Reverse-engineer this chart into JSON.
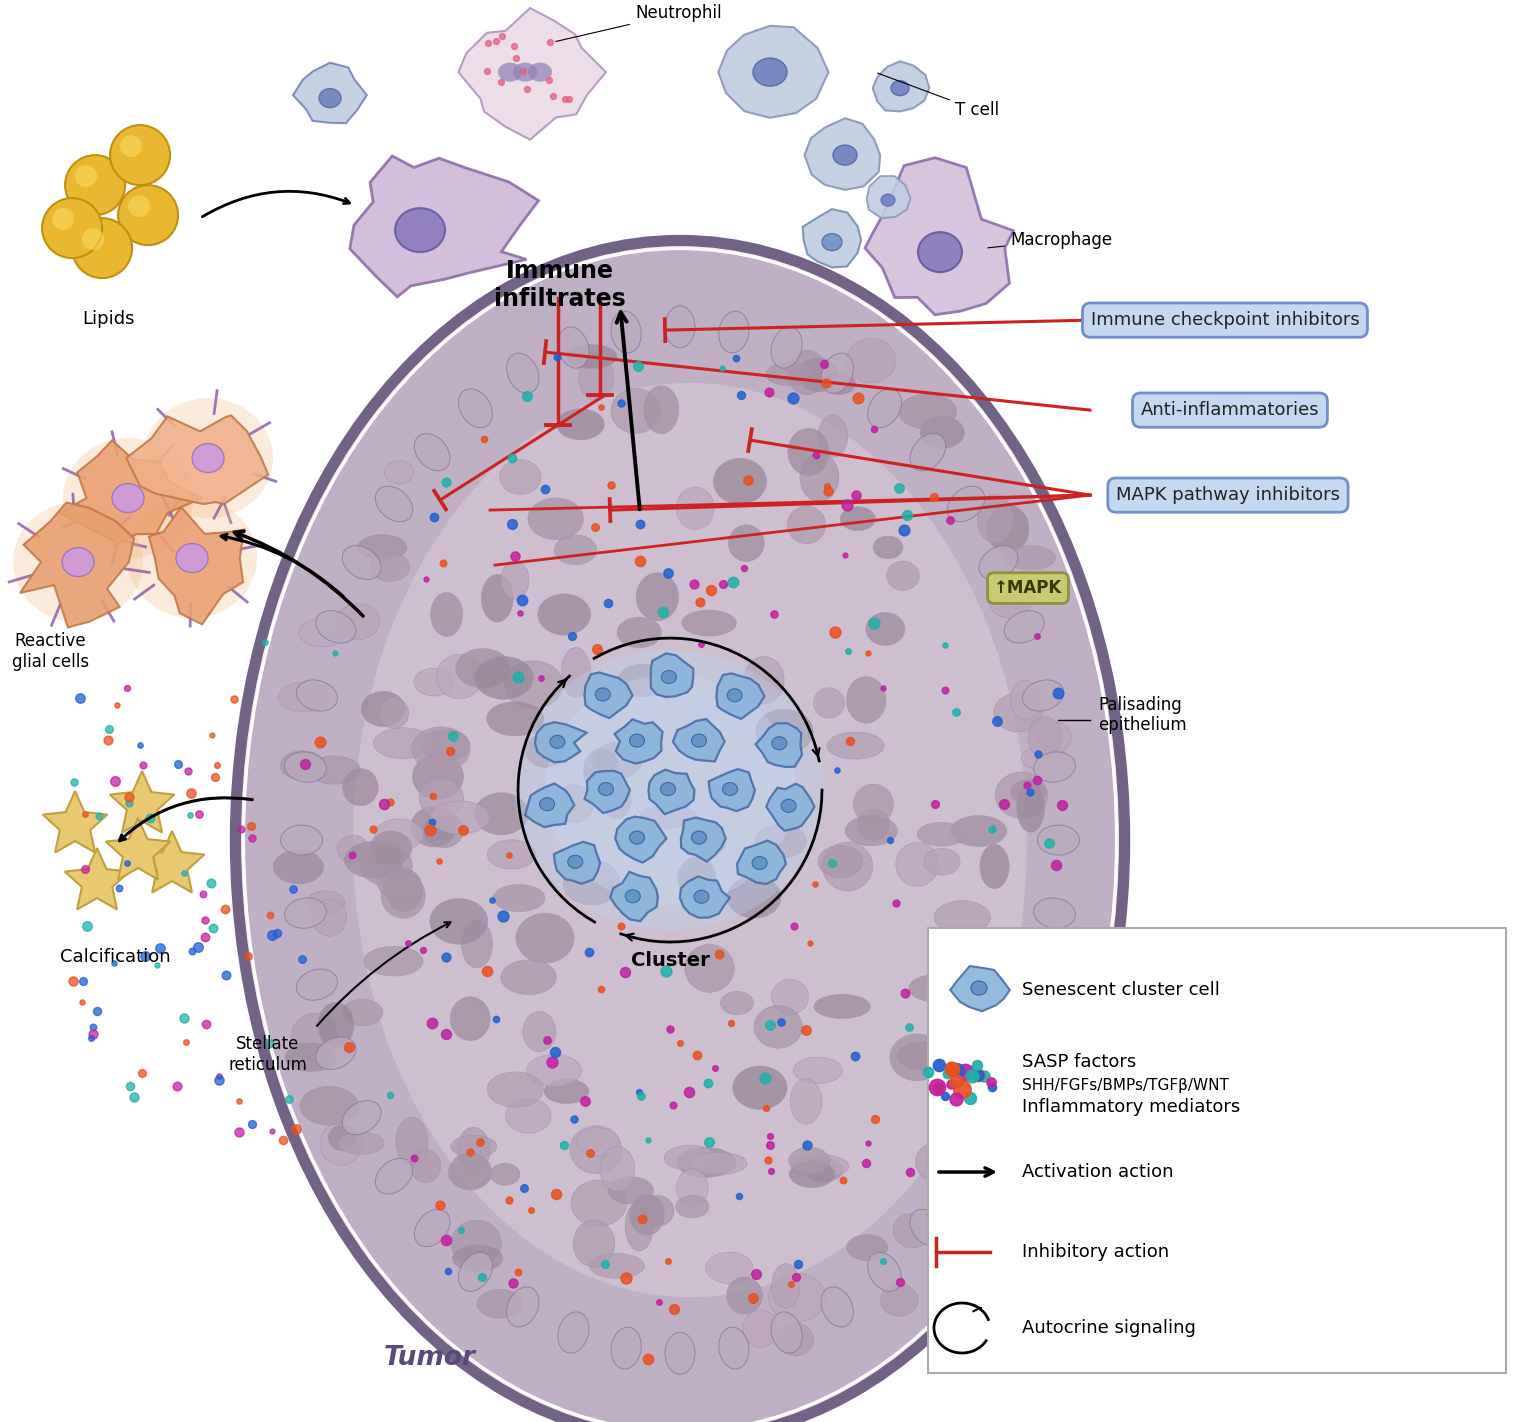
{
  "background_color": "#ffffff",
  "tumor_fill": "#c0b0c5",
  "tumor_edge": "#6a5a80",
  "tumor_inner": "#cfc0cf",
  "cell_mosaic_color": "#c8b8cc",
  "cell_mosaic_edge": "#a898b0",
  "palisade_color": "#b8a8c0",
  "palisade_edge": "#8878a0",
  "cluster_fill": "#8db5dc",
  "cluster_edge": "#4a6fa0",
  "cluster_nuc": "#6090c0",
  "cluster_glow": "#b0d0f0",
  "immune_large_fill": "#d0bcd8",
  "immune_large_edge": "#9070a8",
  "immune_large_nuc": "#8070b0",
  "immune_small_fill": "#c0cce0",
  "immune_small_edge": "#7888b0",
  "immune_small_nuc": "#6878b8",
  "neutrophil_fill": "#e8d8e8",
  "neutrophil_nuc": "#9080b8",
  "neutrophil_dot": "#e06080",
  "macrophage_fill": "#d4c0dc",
  "macrophage_edge": "#9070b0",
  "macrophage_nuc": "#8070b8",
  "glial_fill": "#eaa070",
  "glial_edge": "#c07848",
  "glial_proc": "#9060a8",
  "glial_nuc": "#c898e8",
  "glial_glow": "#f0b880",
  "lipid_fill": "#e8b830",
  "lipid_edge": "#c09010",
  "lipid_high": "#f8d860",
  "calc_fill": "#e8c870",
  "calc_edge": "#c0a040",
  "box_fill": "#c5d8f2",
  "box_edge": "#7090c8",
  "mapk_fill": "#c8ca70",
  "mapk_edge": "#909040",
  "inhibitor_color": "#cc2222",
  "activation_color": "#111111",
  "dot_orange": "#e85020",
  "dot_teal": "#20b0a8",
  "dot_purple": "#c020a0",
  "dot_blue": "#2060d0",
  "labels": {
    "tumor": "Tumor",
    "cluster": "Cluster",
    "lipids": "Lipids",
    "reactive_glial": "Reactive\nglial cells",
    "calcification": "Calcification",
    "stellate": "Stellate\nreticulum",
    "palisading": "Palisading\nepithelium",
    "neutrophil": "Neutrophil",
    "tcell": "T cell",
    "macrophage": "Macrophage",
    "immune": "Immune\ninfiltrates",
    "immune_box": "Immune checkpoint inhibitors",
    "anti_inflam": "Anti-inflammatories",
    "mapk_box": "MAPK pathway inhibitors",
    "mapk_label": "↑MAPK"
  },
  "legend": {
    "senescent": "Senescent cluster cell",
    "sasp_line1": "SASP factors",
    "sasp_line2": "SHH/FGFs/BMPs/TGFβ/WNT",
    "sasp_line3": "Inflammatory mediators",
    "activation": "Activation action",
    "inhibitory": "Inhibitory action",
    "autocrine": "Autocrine signaling"
  }
}
